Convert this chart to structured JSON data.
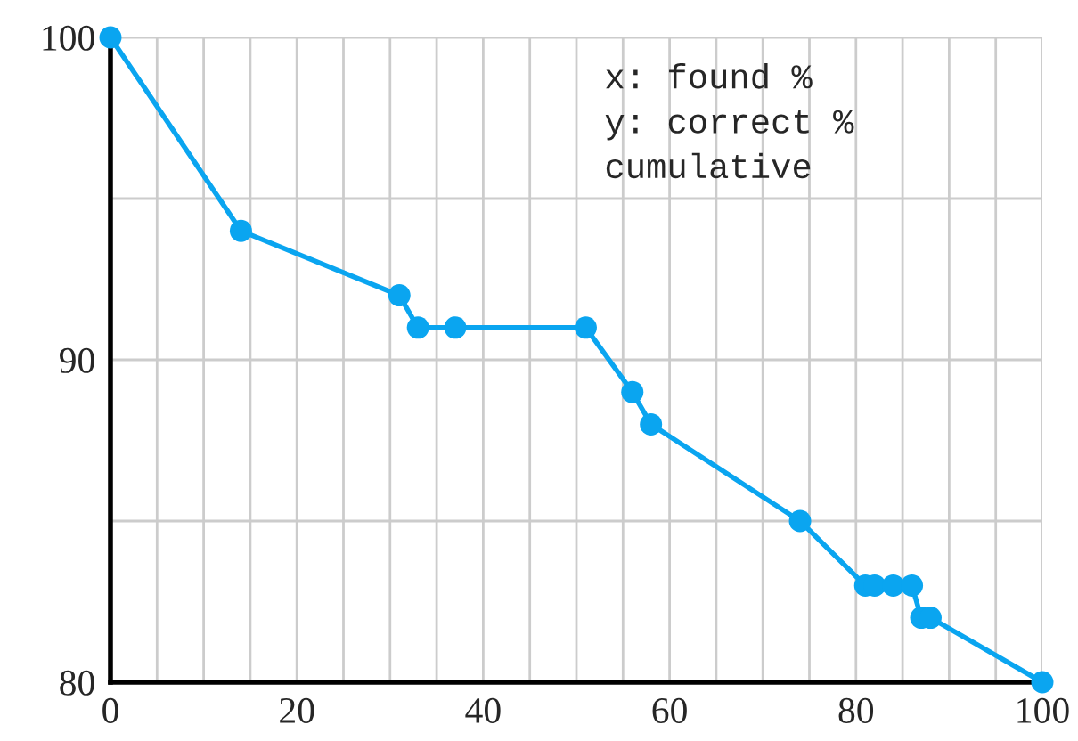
{
  "chart_data": {
    "type": "line",
    "x": [
      0,
      14,
      31,
      33,
      37,
      51,
      56,
      58,
      74,
      81,
      82,
      84,
      86,
      87,
      88,
      100
    ],
    "series": [
      {
        "color": "#0aa5f0",
        "values": [
          100,
          94,
          92,
          91,
          91,
          91,
          89,
          88,
          85,
          83,
          83,
          83,
          83,
          82,
          82,
          80
        ]
      }
    ],
    "xlim": [
      0,
      100
    ],
    "ylim": [
      80,
      100
    ],
    "xticks": [
      0,
      {
        "value": 5,
        "label": null
      },
      {
        "value": 10,
        "label": null
      },
      {
        "value": 15,
        "label": null
      },
      20,
      {
        "value": 25,
        "label": null
      },
      {
        "value": 30,
        "label": null
      },
      {
        "value": 35,
        "label": null
      },
      40,
      {
        "value": 45,
        "label": null
      },
      {
        "value": 50,
        "label": null
      },
      {
        "value": 55,
        "label": null
      },
      60,
      {
        "value": 65,
        "label": null
      },
      {
        "value": 70,
        "label": null
      },
      {
        "value": 75,
        "label": null
      },
      80,
      {
        "value": 85,
        "label": null
      },
      {
        "value": 90,
        "label": null
      },
      {
        "value": 95,
        "label": null
      },
      100
    ],
    "yticks": [
      80,
      {
        "value": 85,
        "label": null
      },
      90,
      {
        "value": 95,
        "label": null
      },
      100
    ],
    "grid": true,
    "marker": "circle",
    "line_style": "solid",
    "annotations": [
      "x: found %\ny: correct %\ncumulative"
    ]
  }
}
